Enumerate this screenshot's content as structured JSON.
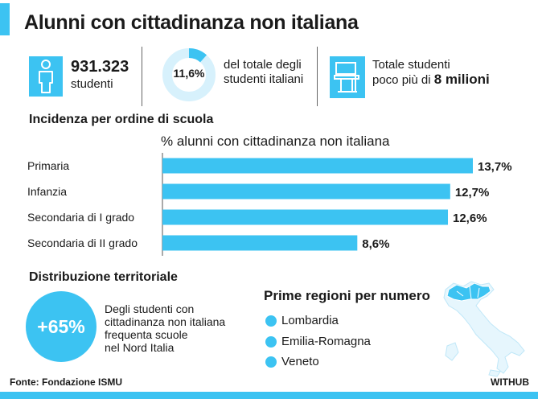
{
  "title": "Alunni con cittadinanza non italiana",
  "kpis": {
    "students_number": "931.323",
    "students_label": "studenti",
    "share_value": "11,6%",
    "share_fraction": 0.116,
    "share_label_line1": "del totale degli",
    "share_label_line2": "studenti italiani",
    "total_line1": "Totale studenti",
    "total_line2_prefix": "poco più di",
    "total_line2_bold": "8 milioni"
  },
  "section_incidence": "Incidenza per ordine di scuola",
  "chart_data": {
    "type": "bar",
    "orientation": "horizontal",
    "title": "% alunni con cittadinanza non italiana",
    "categories": [
      "Primaria",
      "Infanzia",
      "Secondaria di I grado",
      "Secondaria di II grado"
    ],
    "values": [
      13.7,
      12.7,
      12.6,
      8.6
    ],
    "value_labels": [
      "13,7%",
      "12,7%",
      "12,6%",
      "8,6%"
    ],
    "unit": "%",
    "xlim": [
      0,
      13.7
    ],
    "grid": false,
    "bar_color": "#3cc3f2"
  },
  "section_territory": "Distribuzione territoriale",
  "territory": {
    "circle_value": "+65%",
    "desc_lines": [
      "Degli studenti con",
      "cittadinanza non italiana",
      "frequenta scuole",
      "nel Nord Italia"
    ],
    "regions_title": "Prime regioni per numero",
    "regions": [
      "Lombardia",
      "Emilia-Romagna",
      "Veneto"
    ]
  },
  "footer": {
    "source": "Fonte: Fondazione ISMU",
    "brand": "WITHUB"
  },
  "colors": {
    "accent": "#3cc3f2",
    "light_accent": "#d7f1fc",
    "text": "#1a1a1a"
  }
}
